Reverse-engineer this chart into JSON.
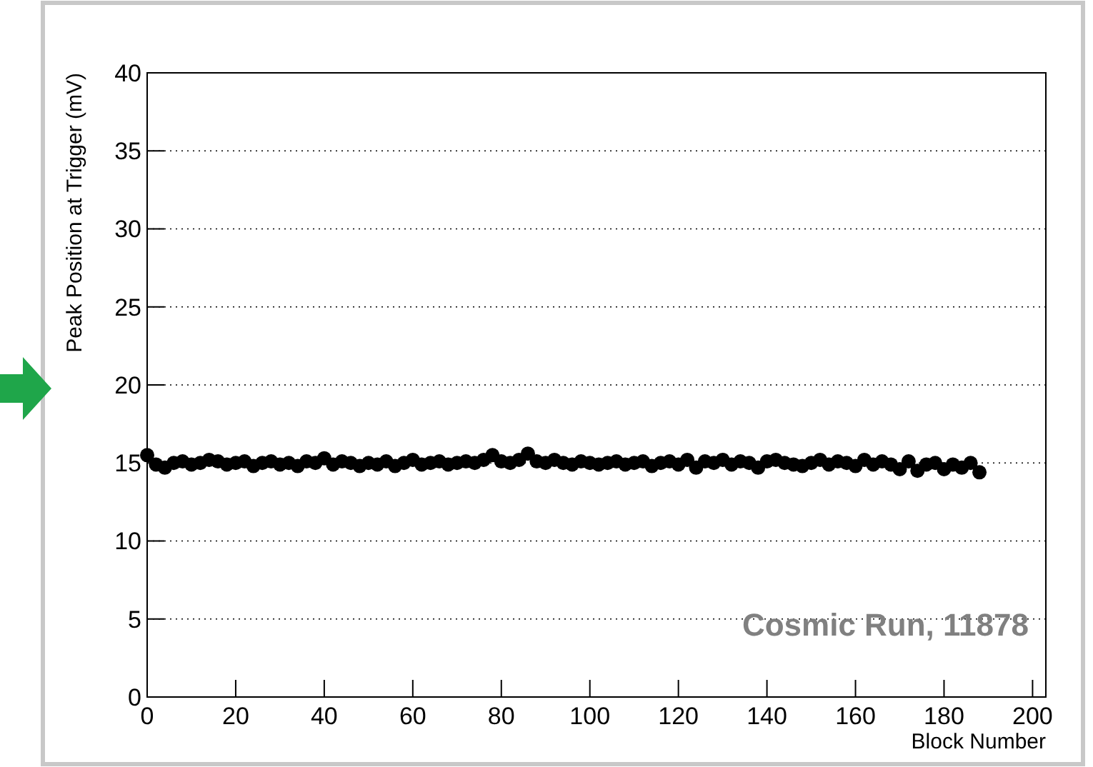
{
  "chart_data": {
    "type": "scatter",
    "xlabel": "Block Number",
    "ylabel": "Peak Position at Trigger (mV)",
    "annotations": [
      "Cosmic Run, 11878"
    ],
    "x": [
      0,
      2,
      4,
      6,
      8,
      10,
      12,
      14,
      16,
      18,
      20,
      22,
      24,
      26,
      28,
      30,
      32,
      34,
      36,
      38,
      40,
      42,
      44,
      46,
      48,
      50,
      52,
      54,
      56,
      58,
      60,
      62,
      64,
      66,
      68,
      70,
      72,
      74,
      76,
      78,
      80,
      82,
      84,
      86,
      88,
      90,
      92,
      94,
      96,
      98,
      100,
      102,
      104,
      106,
      108,
      110,
      112,
      114,
      116,
      118,
      120,
      122,
      124,
      126,
      128,
      130,
      132,
      134,
      136,
      138,
      140,
      142,
      144,
      146,
      148,
      150,
      152,
      154,
      156,
      158,
      160,
      162,
      164,
      166,
      168,
      170,
      172,
      174,
      176,
      178,
      180,
      182,
      184,
      186,
      188
    ],
    "series": [
      {
        "color": "#000000",
        "values": [
          15.5,
          14.9,
          14.7,
          15.0,
          15.1,
          14.9,
          15.0,
          15.2,
          15.1,
          14.9,
          15.0,
          15.1,
          14.8,
          15.0,
          15.1,
          14.9,
          15.0,
          14.8,
          15.1,
          15.0,
          15.3,
          14.9,
          15.1,
          15.0,
          14.8,
          15.0,
          14.9,
          15.1,
          14.8,
          15.0,
          15.2,
          14.9,
          15.0,
          15.1,
          14.9,
          15.0,
          15.1,
          15.0,
          15.2,
          15.5,
          15.1,
          15.0,
          15.2,
          15.6,
          15.1,
          15.0,
          15.2,
          15.0,
          14.9,
          15.1,
          15.0,
          14.9,
          15.0,
          15.1,
          14.9,
          15.0,
          15.1,
          14.8,
          15.0,
          15.1,
          14.9,
          15.2,
          14.7,
          15.1,
          15.0,
          15.2,
          14.9,
          15.1,
          15.0,
          14.7,
          15.1,
          15.2,
          15.0,
          14.9,
          14.8,
          15.0,
          15.2,
          14.9,
          15.1,
          15.0,
          14.8,
          15.2,
          14.9,
          15.1,
          14.9,
          14.6,
          15.1,
          14.5,
          14.9,
          15.0,
          14.6,
          14.9,
          14.7,
          15.0,
          14.4
        ]
      }
    ],
    "xlim": [
      0,
      203
    ],
    "ylim": [
      0,
      40
    ],
    "xticks": [
      0,
      20,
      40,
      60,
      80,
      100,
      120,
      140,
      160,
      180,
      200
    ],
    "yticks": [
      0,
      5,
      10,
      15,
      20,
      25,
      30,
      35,
      40
    ],
    "grid": "y",
    "marker": "circle"
  }
}
